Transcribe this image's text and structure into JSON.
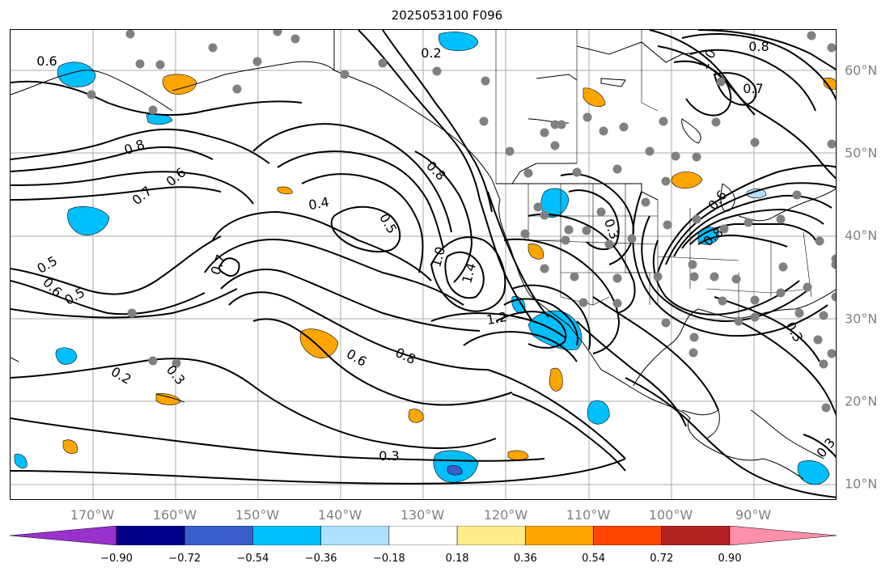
{
  "title": "2025053100 F096",
  "lon_ticks": [
    "170°W",
    "160°W",
    "150°W",
    "140°W",
    "130°W",
    "120°W",
    "110°W",
    "100°W",
    "90°W"
  ],
  "lat_ticks": [
    "60°N",
    "50°N",
    "40°N",
    "30°N",
    "20°N",
    "10°N"
  ],
  "colorbar": {
    "labels": [
      "−0.90",
      "−0.72",
      "−0.54",
      "−0.36",
      "−0.18",
      "0.18",
      "0.36",
      "0.54",
      "0.72",
      "0.90"
    ],
    "colors": [
      "#9932cc",
      "#00008b",
      "#3a5fcd",
      "#00bfff",
      "#b0e2ff",
      "#ffffff",
      "#ffec8b",
      "#ffa500",
      "#ff4500",
      "#b22222",
      "#ff8fab"
    ]
  },
  "contour_labels": [
    {
      "text": "0.6"
    },
    {
      "text": "0.2"
    },
    {
      "text": "1.0"
    },
    {
      "text": "0.8"
    },
    {
      "text": "0.7"
    },
    {
      "text": "0.8"
    },
    {
      "text": "0.7"
    },
    {
      "text": "0.6"
    },
    {
      "text": "0.4"
    },
    {
      "text": "0.5"
    },
    {
      "text": "0.8"
    },
    {
      "text": "0.7"
    },
    {
      "text": "0.5"
    },
    {
      "text": "0.6"
    },
    {
      "text": "0.5"
    },
    {
      "text": "1.0"
    },
    {
      "text": "1.4"
    },
    {
      "text": "1.2"
    },
    {
      "text": "0.6"
    },
    {
      "text": "0.8"
    },
    {
      "text": "0.3"
    },
    {
      "text": "0.2"
    },
    {
      "text": "0.3"
    },
    {
      "text": "0.3"
    },
    {
      "text": "0.3"
    },
    {
      "text": "0.3"
    },
    {
      "text": "0.6"
    },
    {
      "text": "0.8"
    }
  ],
  "colors": {
    "contour": "#000000",
    "grid": "#a0a0a0",
    "station": "#808080",
    "cyan": "#00bfff",
    "light_blue": "#b0e2ff",
    "orange": "#ffa500",
    "blue": "#3a5fcd"
  }
}
